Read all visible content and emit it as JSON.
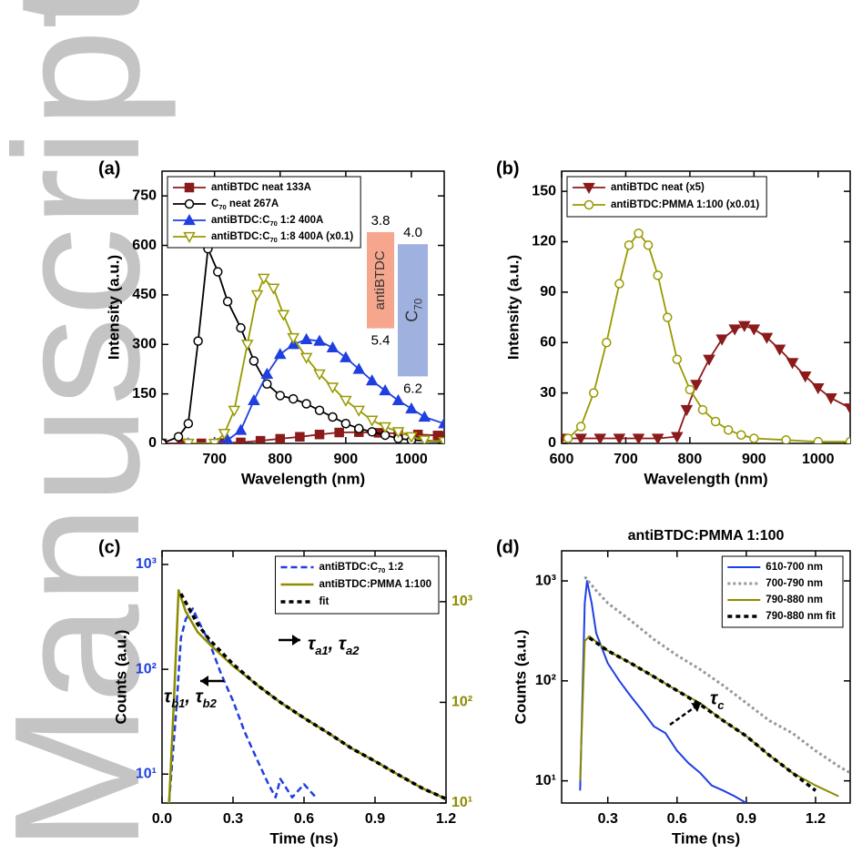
{
  "watermark": "Manuscript",
  "chart_data": [
    {
      "type": "line",
      "label": "(a)",
      "xlabel": "Wavelength (nm)",
      "ylabel": "Intensity (a.u.)",
      "xlim": [
        620,
        1050
      ],
      "ylim": [
        0,
        825
      ],
      "xticks": [
        700,
        800,
        900,
        1000
      ],
      "yticks": [
        0,
        150,
        300,
        450,
        600,
        750
      ],
      "legend": "upper left",
      "series": [
        {
          "name": "antiBTDC neat 133A",
          "color": "#8b1a1a",
          "marker": "square",
          "x": [
            620,
            650,
            680,
            710,
            740,
            770,
            800,
            830,
            860,
            890,
            920,
            950,
            980,
            1010,
            1040,
            1050
          ],
          "values": [
            0,
            0,
            0,
            1,
            3,
            8,
            14,
            20,
            27,
            33,
            34,
            32,
            30,
            27,
            24,
            23
          ]
        },
        {
          "name": "C70 neat 267A",
          "color": "#000000",
          "marker": "circle-open",
          "x": [
            620,
            645,
            660,
            675,
            690,
            705,
            720,
            740,
            760,
            780,
            800,
            820,
            840,
            860,
            880,
            900,
            920,
            940,
            960,
            980,
            1000,
            1050
          ],
          "values": [
            0,
            20,
            60,
            310,
            590,
            520,
            430,
            350,
            250,
            180,
            145,
            135,
            120,
            100,
            80,
            60,
            45,
            35,
            25,
            15,
            10,
            5
          ]
        },
        {
          "name": "antiBTDC:C70 1:2 400A",
          "color": "#1f3fe0",
          "marker": "triangle-up",
          "x": [
            660,
            700,
            720,
            740,
            760,
            780,
            800,
            820,
            840,
            860,
            880,
            900,
            920,
            940,
            960,
            980,
            1000,
            1020,
            1050
          ],
          "values": [
            0,
            0,
            10,
            40,
            130,
            210,
            270,
            300,
            315,
            310,
            290,
            260,
            225,
            190,
            160,
            130,
            105,
            80,
            60
          ]
        },
        {
          "name": "antiBTDC:C70 1:8 400A (x0.1)",
          "color": "#999900",
          "marker": "triangle-down-open",
          "x": [
            660,
            700,
            715,
            730,
            750,
            765,
            775,
            790,
            805,
            820,
            840,
            860,
            880,
            900,
            920,
            940,
            960,
            980,
            1000,
            1020,
            1050
          ],
          "values": [
            0,
            0,
            30,
            100,
            300,
            450,
            500,
            470,
            390,
            320,
            260,
            210,
            170,
            130,
            100,
            70,
            50,
            35,
            20,
            10,
            5
          ]
        }
      ],
      "energy_levels": [
        {
          "name": "antiBTDC",
          "lumo": 3.8,
          "homo": 5.4,
          "color": "#f6a68c"
        },
        {
          "name": "C70",
          "lumo": {
            "value": 4.0,
            "label": "4.0"
          },
          "homo": 6.2,
          "color": "#9fb2df"
        }
      ]
    },
    {
      "type": "line",
      "label": "(b)",
      "xlabel": "Wavelength (nm)",
      "ylabel": "Intensity (a.u.)",
      "xlim": [
        600,
        1050
      ],
      "ylim": [
        0,
        162
      ],
      "xticks": [
        600,
        700,
        800,
        900,
        1000
      ],
      "yticks": [
        0,
        30,
        60,
        90,
        120,
        150
      ],
      "legend": "upper left",
      "series": [
        {
          "name": "antiBTDC neat (x5)",
          "color": "#8b1a1a",
          "marker": "triangle-down",
          "x": [
            600,
            630,
            660,
            690,
            720,
            750,
            780,
            795,
            810,
            830,
            850,
            870,
            885,
            900,
            920,
            940,
            960,
            980,
            1000,
            1020,
            1050
          ],
          "values": [
            3,
            3,
            3,
            3,
            3,
            3,
            4,
            20,
            35,
            50,
            62,
            68,
            70,
            68,
            63,
            56,
            48,
            40,
            33,
            27,
            21
          ]
        },
        {
          "name": "antiBTDC:PMMA 1:100 (x0.01)",
          "color": "#999900",
          "marker": "circle-open",
          "x": [
            610,
            630,
            650,
            670,
            690,
            705,
            720,
            735,
            750,
            765,
            780,
            800,
            820,
            840,
            860,
            880,
            900,
            950,
            1000,
            1050
          ],
          "values": [
            3,
            10,
            30,
            60,
            95,
            118,
            125,
            118,
            100,
            75,
            50,
            32,
            20,
            13,
            8,
            5,
            3,
            2,
            1,
            1
          ]
        }
      ]
    },
    {
      "type": "line",
      "label": "(c)",
      "xlabel": "Time (ns)",
      "ylabel": "Counts (a.u.)",
      "ylog": true,
      "xlim": [
        0,
        1.2
      ],
      "ylim": [
        5.3,
        1350
      ],
      "y2lim": [
        10,
        3200
      ],
      "xticks": [
        {
          "value": 0,
          "label": "0.0"
        },
        0.3,
        0.6,
        0.9,
        1.2
      ],
      "yticks": [
        {
          "value": 10,
          "label": "10¹"
        },
        {
          "value": 100,
          "label": "10²"
        },
        {
          "value": 1000,
          "label": "10³"
        }
      ],
      "y2ticks": [
        {
          "value": 10,
          "label": "10¹"
        },
        {
          "value": 100,
          "label": "10²"
        },
        {
          "value": 1000,
          "label": "10³"
        }
      ],
      "ycolor": "#1f3fe0",
      "y2color": "#8c8c00",
      "legend": "upper right",
      "series": [
        {
          "name": "antiBTDC:C70 1:2",
          "color": "#1f3fe0",
          "dash": "7,4",
          "width": 2.5,
          "x": [
            0.03,
            0.06,
            0.08,
            0.1,
            0.13,
            0.15,
            0.2,
            0.25,
            0.3,
            0.35,
            0.4,
            0.43,
            0.45,
            0.48,
            0.5,
            0.55,
            0.6,
            0.65
          ],
          "values": [
            5.5,
            40,
            200,
            300,
            380,
            300,
            180,
            90,
            50,
            25,
            14,
            10,
            8,
            6,
            9,
            6,
            8,
            6
          ]
        },
        {
          "name": "antiBTDC:PMMA 1:100",
          "color": "#8c8c00",
          "width": 2.5,
          "axis": "y2",
          "x": [
            0.03,
            0.05,
            0.07,
            0.1,
            0.15,
            0.2,
            0.3,
            0.4,
            0.5,
            0.6,
            0.7,
            0.8,
            0.9,
            1.0,
            1.1,
            1.2
          ],
          "values": [
            10,
            100,
            1300,
            800,
            500,
            380,
            230,
            150,
            100,
            70,
            50,
            35,
            26,
            19,
            14,
            11
          ]
        },
        {
          "name": "fit",
          "color": "#000000",
          "dash": "5,4",
          "width": 3.5,
          "axis": "y2",
          "x": [
            0.08,
            0.15,
            0.2,
            0.3,
            0.4,
            0.5,
            0.6,
            0.7,
            0.8,
            0.9,
            1.0,
            1.1,
            1.2
          ],
          "values": [
            1200,
            600,
            420,
            240,
            150,
            100,
            70,
            50,
            35,
            26,
            19,
            14,
            11
          ]
        }
      ],
      "annotations": [
        "τa1, τa2",
        "τb1, τb2"
      ]
    },
    {
      "type": "line",
      "label": "(d)",
      "title": "antiBTDC:PMMA 1:100",
      "xlabel": "Time (ns)",
      "ylabel": "Counts (a.u.)",
      "ylog": true,
      "xlim": [
        0.1,
        1.35
      ],
      "ylim": [
        6,
        2000
      ],
      "xticks": [
        0.3,
        0.6,
        0.9,
        1.2
      ],
      "yticks": [
        {
          "value": 10,
          "label": "10¹"
        },
        {
          "value": 100,
          "label": "10²"
        },
        {
          "value": 1000,
          "label": "10³"
        }
      ],
      "legend": "upper right",
      "series": [
        {
          "name": "610-700 nm",
          "color": "#1f3fe0",
          "width": 2,
          "x": [
            0.18,
            0.2,
            0.21,
            0.23,
            0.25,
            0.3,
            0.35,
            0.4,
            0.45,
            0.5,
            0.55,
            0.6,
            0.65,
            0.7,
            0.75,
            0.8,
            0.85,
            0.9
          ],
          "values": [
            8,
            600,
            1000,
            600,
            300,
            150,
            100,
            70,
            50,
            35,
            30,
            20,
            15,
            12,
            9,
            8,
            7,
            6
          ]
        },
        {
          "name": "700-790 nm",
          "color": "#999999",
          "dash": "3,3",
          "width": 3,
          "x": [
            0.2,
            0.25,
            0.3,
            0.4,
            0.5,
            0.6,
            0.7,
            0.8,
            0.9,
            1.0,
            1.1,
            1.2,
            1.3,
            1.35
          ],
          "values": [
            1100,
            800,
            600,
            400,
            260,
            180,
            130,
            90,
            60,
            40,
            30,
            20,
            14,
            12
          ]
        },
        {
          "name": "790-880 nm",
          "color": "#8c8c00",
          "width": 2,
          "x": [
            0.18,
            0.2,
            0.22,
            0.3,
            0.4,
            0.5,
            0.6,
            0.7,
            0.8,
            0.9,
            1.0,
            1.1,
            1.2,
            1.3
          ],
          "values": [
            10,
            250,
            280,
            200,
            150,
            110,
            80,
            60,
            40,
            28,
            18,
            12,
            9,
            7
          ]
        },
        {
          "name": "790-880 nm fit",
          "color": "#000000",
          "dash": "5,4",
          "width": 3.5,
          "x": [
            0.22,
            0.3,
            0.4,
            0.5,
            0.6,
            0.7,
            0.8,
            0.9,
            1.0,
            1.1,
            1.2
          ],
          "values": [
            270,
            200,
            150,
            110,
            80,
            58,
            40,
            28,
            18,
            12,
            8
          ]
        }
      ],
      "annotations": [
        "τc"
      ]
    }
  ]
}
